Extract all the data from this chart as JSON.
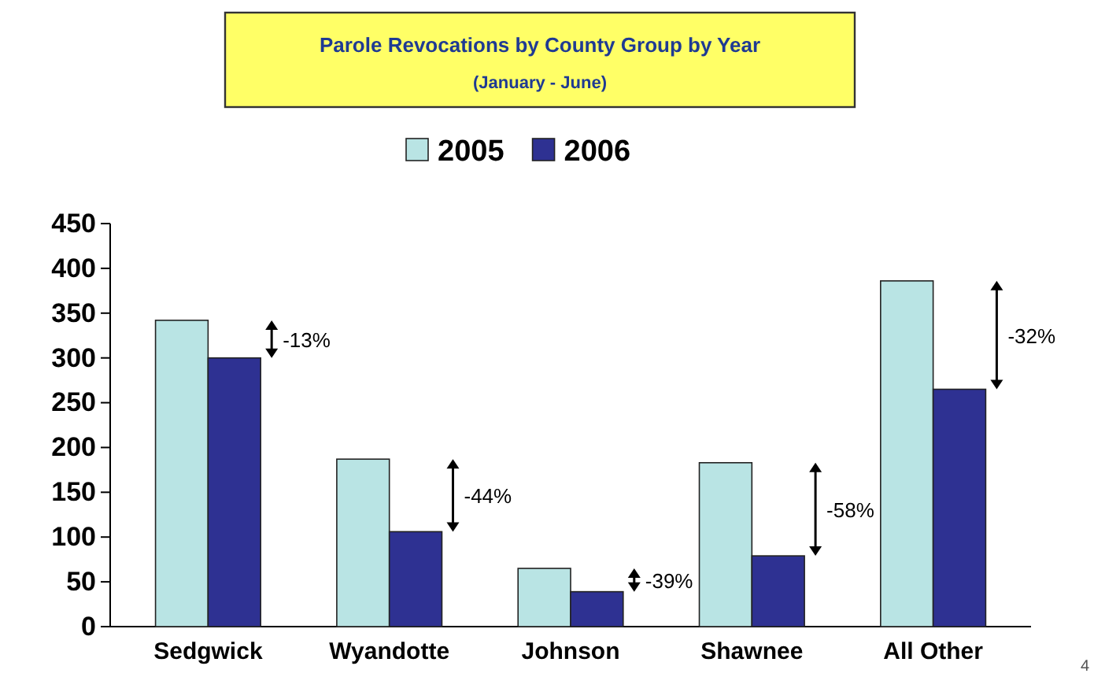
{
  "chart_data": {
    "type": "bar",
    "title": "Parole Revocations by County Group by Year",
    "subtitle": "(January - June)",
    "categories": [
      "Sedgwick",
      "Wyandotte",
      "Johnson",
      "Shawnee",
      "All Other"
    ],
    "series": [
      {
        "name": "2005",
        "color": "#b9e4e4",
        "values": [
          342,
          187,
          65,
          183,
          386
        ]
      },
      {
        "name": "2006",
        "color": "#2e3192",
        "values": [
          300,
          106,
          39,
          79,
          265
        ]
      }
    ],
    "ylim": [
      0,
      450
    ],
    "yticks": [
      0,
      50,
      100,
      150,
      200,
      250,
      300,
      350,
      400,
      450
    ],
    "grid": false,
    "legend": "top",
    "annotations": [
      "-13%",
      "-44%",
      "-39%",
      "-58%",
      "-32%",
      "4"
    ]
  }
}
